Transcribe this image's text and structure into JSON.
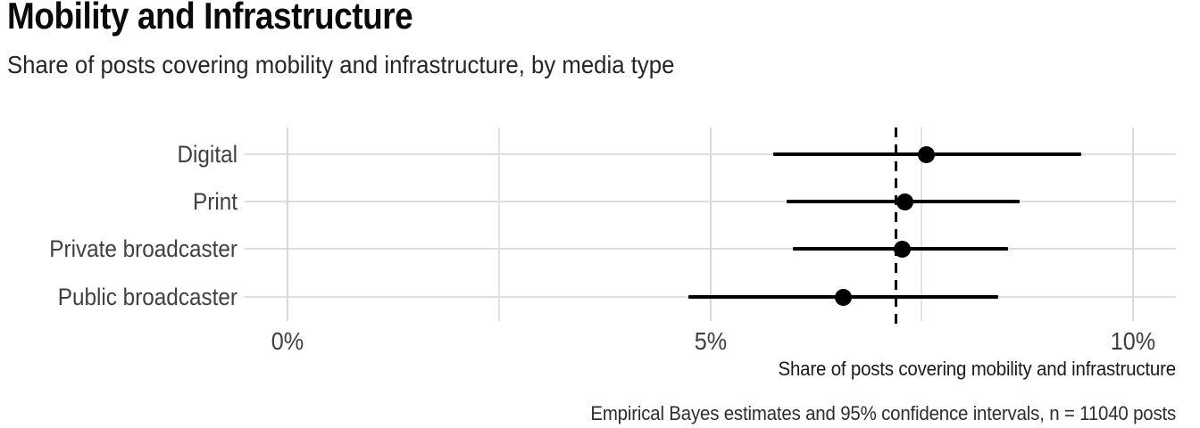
{
  "chart_data": {
    "type": "scatter",
    "variant": "dot-interval-forest",
    "title": "Mobility and Infrastructure",
    "subtitle": "Share of posts covering mobility and infrastructure, by media type",
    "caption": "Empirical Bayes estimates and 95% confidence intervals, n = 11040 posts",
    "xlabel": "Share of posts covering mobility and infrastructure",
    "ylabel": "",
    "categories": [
      "Digital",
      "Print",
      "Private broadcaster",
      "Public broadcaster"
    ],
    "estimates": [
      7.56,
      7.3,
      7.27,
      6.57
    ],
    "ci_lower": [
      5.74,
      5.9,
      5.98,
      4.74
    ],
    "ci_upper": [
      9.39,
      8.66,
      8.52,
      8.41
    ],
    "interval_level": "95%",
    "reference_line_x": 7.2,
    "reference_line_style": "dashed",
    "x_ticks": [
      {
        "value": 0,
        "label": "0%"
      },
      {
        "value": 5,
        "label": "5%"
      },
      {
        "value": 10,
        "label": "10%"
      }
    ],
    "x_minor_gridlines": [
      2.5,
      7.5
    ],
    "xlim": [
      -0.5,
      10.5
    ],
    "grid": "on",
    "legend": "none"
  },
  "colors": {
    "background": "#ffffff",
    "point": "#000000",
    "interval": "#000000",
    "reference_line": "#000000",
    "grid_major": "#d9d9d9",
    "grid_minor": "#e4e4e4",
    "grid_horizontal": "#dedede",
    "title_text": "#0a0a0a",
    "axis_text": "#404040",
    "caption_text": "#2e2e2e"
  }
}
